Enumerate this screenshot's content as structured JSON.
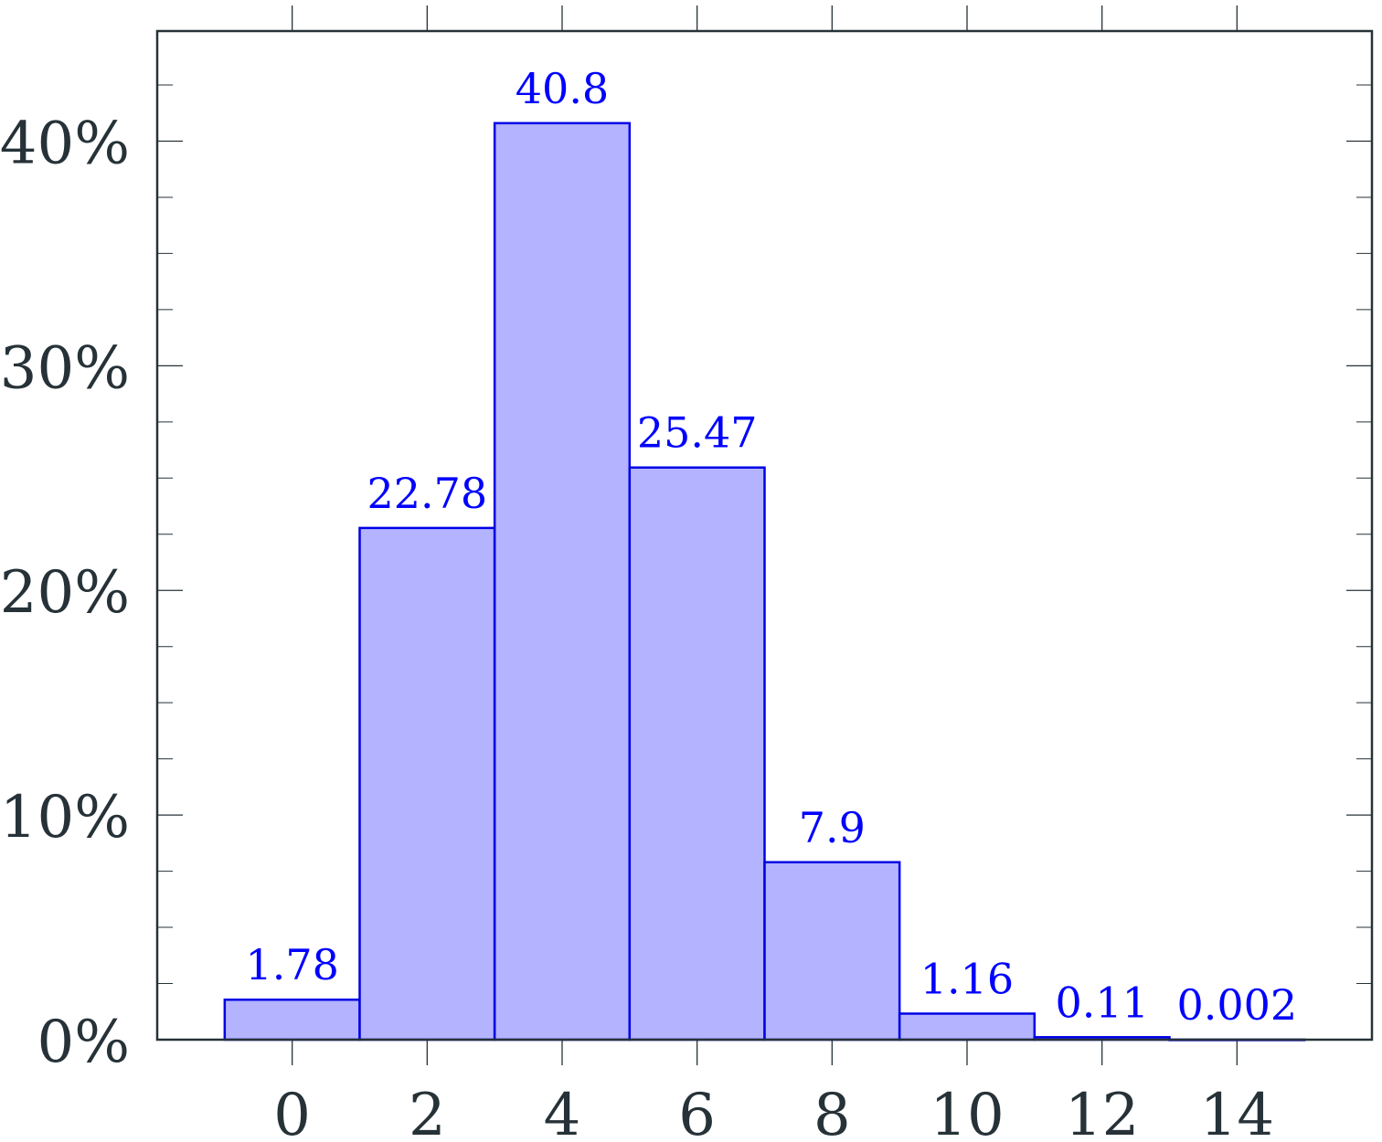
{
  "chart_data": {
    "type": "bar",
    "x": [
      0,
      2,
      4,
      6,
      8,
      10,
      12,
      14
    ],
    "values": [
      1.78,
      22.78,
      40.8,
      25.47,
      7.9,
      1.16,
      0.11,
      0.002
    ],
    "data_labels": [
      "1.78",
      "22.78",
      "40.8",
      "25.47",
      "7.9",
      "1.16",
      "0.11",
      "0.002"
    ],
    "bar_width": 2,
    "xlim": [
      -2,
      16
    ],
    "ylim": [
      0,
      44.9
    ],
    "xticks": [
      0,
      2,
      4,
      6,
      8,
      10,
      12,
      14
    ],
    "xtick_labels": [
      "0",
      "2",
      "4",
      "6",
      "8",
      "10",
      "12",
      "14"
    ],
    "yticks": [
      0,
      10,
      20,
      30,
      40
    ],
    "ytick_labels": [
      "0%",
      "10%",
      "20%",
      "30%",
      "40%"
    ],
    "yminor_step": 2.5,
    "title": "",
    "xlabel": "",
    "ylabel": "",
    "grid": false,
    "colors": {
      "bar_fill": "#b3b3ff",
      "bar_stroke": "#0000e6",
      "label": "#0000ff",
      "axis": "#263238"
    }
  }
}
